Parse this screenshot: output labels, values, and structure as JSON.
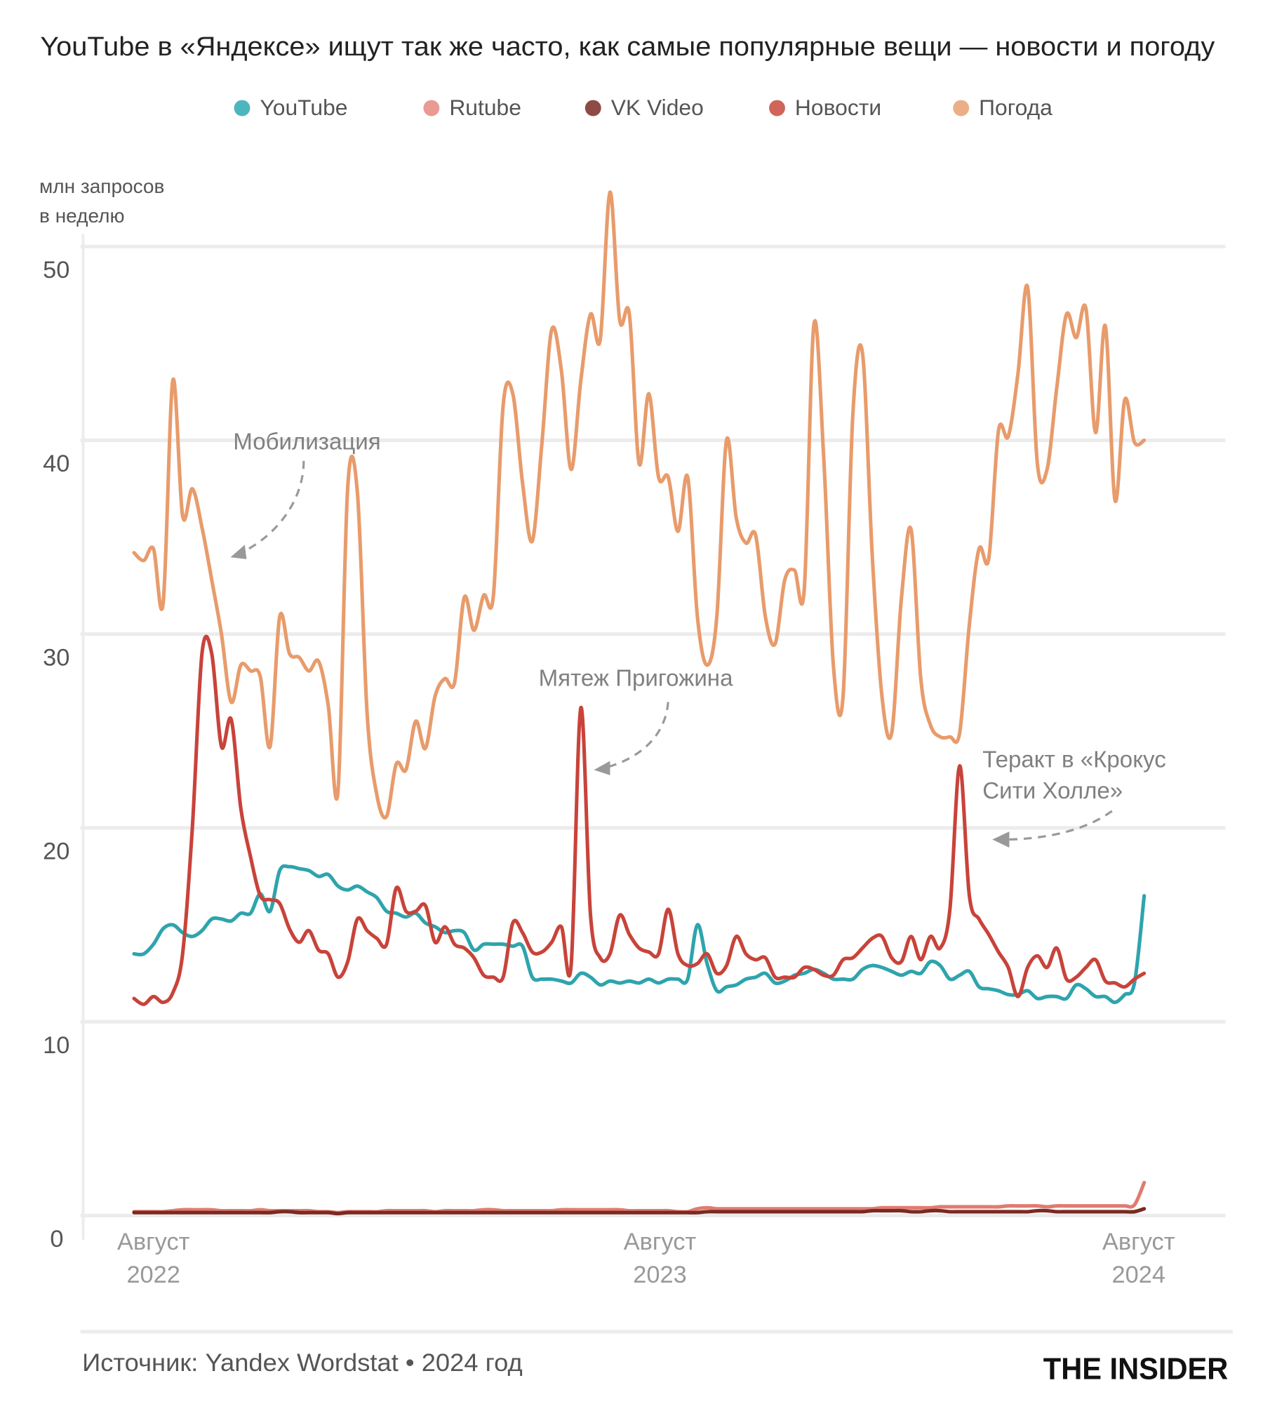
{
  "chart_data": {
    "type": "line",
    "title": "YouTube в «Яндексе» ищут так же часто, как самые популярные вещи — новости и погоду",
    "ylabel_line1": "млн запросов",
    "ylabel_line2": "в неделю",
    "ylim": [
      0,
      52
    ],
    "yticks": [
      0,
      10,
      20,
      30,
      40,
      50
    ],
    "grid": true,
    "legend_placement": "top-center",
    "xticks": [
      {
        "date": "2022-08-15",
        "line1": "Август",
        "line2": "2022"
      },
      {
        "date": "2023-08-15",
        "line1": "Август",
        "line2": "2023"
      },
      {
        "date": "2024-07-25",
        "line1": "Август",
        "line2": "2024"
      }
    ],
    "x": [
      "2022-08-01",
      "2022-08-08",
      "2022-08-15",
      "2022-08-22",
      "2022-08-29",
      "2022-09-05",
      "2022-09-12",
      "2022-09-19",
      "2022-09-26",
      "2022-10-03",
      "2022-10-10",
      "2022-10-17",
      "2022-10-24",
      "2022-10-31",
      "2022-11-07",
      "2022-11-14",
      "2022-11-21",
      "2022-11-28",
      "2022-12-05",
      "2022-12-12",
      "2022-12-19",
      "2022-12-26",
      "2023-01-02",
      "2023-01-09",
      "2023-01-16",
      "2023-01-23",
      "2023-01-30",
      "2023-02-06",
      "2023-02-13",
      "2023-02-20",
      "2023-02-27",
      "2023-03-06",
      "2023-03-13",
      "2023-03-20",
      "2023-03-27",
      "2023-04-03",
      "2023-04-10",
      "2023-04-17",
      "2023-04-24",
      "2023-05-01",
      "2023-05-08",
      "2023-05-15",
      "2023-05-22",
      "2023-05-29",
      "2023-06-05",
      "2023-06-12",
      "2023-06-19",
      "2023-06-26",
      "2023-07-03",
      "2023-07-10",
      "2023-07-17",
      "2023-07-24",
      "2023-07-31",
      "2023-08-07",
      "2023-08-14",
      "2023-08-21",
      "2023-08-28",
      "2023-09-04",
      "2023-09-11",
      "2023-09-18",
      "2023-09-25",
      "2023-10-02",
      "2023-10-09",
      "2023-10-16",
      "2023-10-23",
      "2023-10-30",
      "2023-11-06",
      "2023-11-13",
      "2023-11-20",
      "2023-11-27",
      "2023-12-04",
      "2023-12-11",
      "2023-12-18",
      "2023-12-25",
      "2024-01-01",
      "2024-01-08",
      "2024-01-15",
      "2024-01-22",
      "2024-01-29",
      "2024-02-05",
      "2024-02-12",
      "2024-02-19",
      "2024-02-26",
      "2024-03-04",
      "2024-03-11",
      "2024-03-18",
      "2024-03-25",
      "2024-04-01",
      "2024-04-08",
      "2024-04-15",
      "2024-04-22",
      "2024-04-29",
      "2024-05-06",
      "2024-05-13",
      "2024-05-20",
      "2024-05-27",
      "2024-06-03",
      "2024-06-10",
      "2024-06-17",
      "2024-06-24",
      "2024-07-01",
      "2024-07-08",
      "2024-07-15",
      "2024-07-22",
      "2024-07-29"
    ],
    "series": [
      {
        "name": "YouTube",
        "color": "#2ea4ad",
        "legend_color": "#4db5bd",
        "values": [
          13.5,
          13.5,
          14,
          14.8,
          15,
          14.6,
          14.4,
          14.7,
          15.3,
          15.3,
          15.2,
          15.6,
          15.6,
          16.6,
          15.7,
          17.8,
          18,
          17.9,
          17.8,
          17.5,
          17.6,
          17,
          16.8,
          17,
          16.7,
          16.4,
          15.7,
          15.6,
          15.4,
          15.6,
          15.1,
          14.9,
          14.6,
          14.7,
          14.6,
          13.7,
          14,
          14,
          14,
          13.9,
          13.9,
          12.3,
          12.2,
          12.2,
          12.1,
          12,
          12.5,
          12.3,
          11.9,
          12.1,
          12,
          12.1,
          12,
          12.2,
          12,
          12.2,
          12.2,
          12.2,
          15,
          13,
          11.6,
          11.8,
          11.9,
          12.2,
          12.3,
          12.5,
          12,
          12.1,
          12.4,
          12.5,
          12.7,
          12.5,
          12.2,
          12.2,
          12.2,
          12.7,
          12.9,
          12.8,
          12.6,
          12.4,
          12.6,
          12.5,
          13.1,
          12.9,
          12.2,
          12.4,
          12.6,
          11.8,
          11.7,
          11.6,
          11.4,
          11.4,
          11.6,
          11.2,
          11.3,
          11.3,
          11.2,
          11.9,
          11.7,
          11.3,
          11.3,
          11,
          11.4,
          12,
          16.5
        ]
      },
      {
        "name": "Rutube",
        "color": "#e07b70",
        "legend_color": "#e99a93",
        "values": [
          0.2,
          0.2,
          0.2,
          0.2,
          0.25,
          0.3,
          0.3,
          0.3,
          0.3,
          0.25,
          0.25,
          0.25,
          0.25,
          0.3,
          0.25,
          0.25,
          0.25,
          0.25,
          0.25,
          0.2,
          0.2,
          0.15,
          0.2,
          0.2,
          0.2,
          0.2,
          0.25,
          0.25,
          0.25,
          0.25,
          0.25,
          0.2,
          0.25,
          0.25,
          0.25,
          0.25,
          0.3,
          0.3,
          0.25,
          0.25,
          0.25,
          0.25,
          0.25,
          0.25,
          0.3,
          0.3,
          0.3,
          0.3,
          0.3,
          0.3,
          0.3,
          0.25,
          0.25,
          0.25,
          0.25,
          0.25,
          0.2,
          0.2,
          0.35,
          0.4,
          0.35,
          0.35,
          0.35,
          0.35,
          0.35,
          0.35,
          0.35,
          0.35,
          0.35,
          0.35,
          0.35,
          0.35,
          0.35,
          0.35,
          0.35,
          0.35,
          0.35,
          0.4,
          0.4,
          0.4,
          0.4,
          0.4,
          0.4,
          0.45,
          0.45,
          0.45,
          0.45,
          0.45,
          0.45,
          0.45,
          0.5,
          0.5,
          0.5,
          0.5,
          0.45,
          0.5,
          0.5,
          0.5,
          0.5,
          0.5,
          0.5,
          0.5,
          0.5,
          0.55,
          1.7
        ]
      },
      {
        "name": "VK Video",
        "color": "#7a2a22",
        "legend_color": "#8e4b45",
        "values": [
          0.15,
          0.15,
          0.15,
          0.15,
          0.15,
          0.15,
          0.15,
          0.15,
          0.15,
          0.15,
          0.15,
          0.15,
          0.15,
          0.15,
          0.15,
          0.2,
          0.2,
          0.15,
          0.15,
          0.15,
          0.15,
          0.1,
          0.15,
          0.15,
          0.15,
          0.15,
          0.15,
          0.15,
          0.15,
          0.15,
          0.15,
          0.15,
          0.15,
          0.15,
          0.15,
          0.15,
          0.15,
          0.15,
          0.15,
          0.15,
          0.15,
          0.15,
          0.15,
          0.15,
          0.15,
          0.15,
          0.15,
          0.15,
          0.15,
          0.15,
          0.15,
          0.15,
          0.15,
          0.15,
          0.15,
          0.15,
          0.15,
          0.15,
          0.15,
          0.2,
          0.2,
          0.2,
          0.2,
          0.2,
          0.2,
          0.2,
          0.2,
          0.2,
          0.2,
          0.2,
          0.2,
          0.2,
          0.2,
          0.2,
          0.2,
          0.2,
          0.25,
          0.25,
          0.25,
          0.25,
          0.2,
          0.2,
          0.25,
          0.25,
          0.2,
          0.2,
          0.2,
          0.2,
          0.2,
          0.2,
          0.2,
          0.2,
          0.2,
          0.25,
          0.25,
          0.2,
          0.2,
          0.2,
          0.2,
          0.2,
          0.2,
          0.2,
          0.2,
          0.2,
          0.35
        ]
      },
      {
        "name": "Новости",
        "color": "#c8433a",
        "legend_color": "#d0655a",
        "values": [
          11.2,
          10.9,
          11.3,
          11,
          11.5,
          13.5,
          20,
          29,
          29,
          24.2,
          25.6,
          21,
          18.5,
          16.5,
          16.3,
          16.1,
          14.8,
          14.1,
          14.7,
          13.7,
          13.5,
          12.3,
          13.1,
          15.3,
          14.7,
          14.3,
          14,
          16.9,
          15.7,
          15.7,
          16,
          14.1,
          14.9,
          14,
          13.8,
          13.3,
          12.4,
          12.3,
          12.3,
          15.1,
          14.6,
          13.6,
          13.6,
          14.1,
          14.9,
          12.9,
          26.2,
          15.5,
          13.3,
          13.5,
          15.5,
          14.5,
          13.8,
          13.6,
          13.5,
          15.8,
          13.5,
          12.9,
          13,
          13.5,
          12.5,
          12.9,
          14.4,
          13.5,
          13.2,
          13.3,
          12.3,
          12.3,
          12.3,
          12.8,
          12.7,
          12.4,
          12.4,
          13.2,
          13.3,
          13.8,
          14.3,
          14.4,
          13.3,
          13.1,
          14.4,
          13.2,
          14.4,
          13.8,
          15.8,
          23.2,
          16.5,
          15.3,
          14.5,
          13.6,
          12.8,
          11.3,
          12.8,
          13.4,
          12.8,
          13.8,
          12.2,
          12.3,
          12.8,
          13.2,
          12.1,
          12,
          11.8,
          12.2,
          12.5
        ]
      },
      {
        "name": "Погода",
        "color": "#e89b6b",
        "legend_color": "#ecae87",
        "values": [
          34.2,
          33.8,
          34.4,
          31.6,
          43.1,
          36.1,
          37.5,
          35.5,
          32.8,
          30,
          26.5,
          28.4,
          28.1,
          27.8,
          24.2,
          30.9,
          29,
          28.8,
          28.1,
          28.6,
          26.3,
          21.9,
          37.6,
          37.3,
          25.9,
          21.7,
          20.6,
          23.3,
          23,
          25.5,
          24.1,
          26.8,
          27.7,
          27.5,
          31.9,
          30.2,
          32,
          32,
          41.8,
          42.4,
          37.8,
          34.8,
          39.9,
          45.7,
          43.6,
          38.5,
          43.1,
          46.5,
          45.2,
          52.8,
          46.2,
          46.5,
          38.8,
          42.4,
          38.1,
          38.1,
          35.3,
          38.1,
          30.9,
          28.4,
          30.9,
          40,
          36,
          34.7,
          35.1,
          30.9,
          29.5,
          32.8,
          33.3,
          32.3,
          46,
          39.2,
          28.4,
          26.8,
          41.3,
          44.5,
          34.1,
          26.8,
          24.9,
          31.8,
          35.4,
          27.7,
          25.3,
          24.7,
          24.7,
          24.9,
          30.5,
          34.4,
          33.9,
          40.5,
          40.2,
          43.4,
          47.9,
          38.8,
          38.5,
          42.7,
          46.5,
          45.3,
          46.8,
          40.4,
          45.9,
          36.9,
          42.1,
          39.9,
          40
        ]
      }
    ],
    "annotations": [
      {
        "lines": [
          "Мобилизация"
        ],
        "date": "2022-09-19"
      },
      {
        "lines": [
          "Мятеж Пригожина"
        ],
        "date": "2023-06-19"
      },
      {
        "lines": [
          "Теракт в «Крокус",
          "Сити Холле»"
        ],
        "date": "2024-03-18"
      }
    ]
  },
  "footer": {
    "source": "Источник: Yandex Wordstat • 2024 год",
    "logo": "THE INSIDER"
  }
}
